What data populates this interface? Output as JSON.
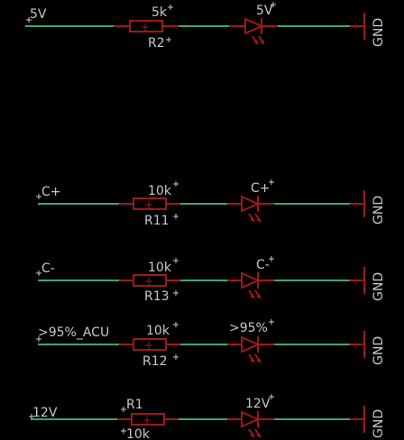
{
  "rows": [
    {
      "net_label": "5V",
      "resistor": {
        "value": "5k",
        "name": "R2"
      },
      "led": {
        "label": "5V"
      },
      "ground": "GND"
    },
    {
      "net_label": "C+",
      "resistor": {
        "value": "10k",
        "name": "R11"
      },
      "led": {
        "label": "C+"
      },
      "ground": "GND"
    },
    {
      "net_label": "C-",
      "resistor": {
        "value": "10k",
        "name": "R13"
      },
      "led": {
        "label": "C-"
      },
      "ground": "GND"
    },
    {
      "net_label": ">95%_ACU",
      "resistor": {
        "value": "10k",
        "name": "R12"
      },
      "led": {
        "label": ">95%"
      },
      "ground": "GND"
    },
    {
      "net_label": "12V",
      "resistor": {
        "value": "10k",
        "name": "R1"
      },
      "led": {
        "label": "12V"
      },
      "ground": "GND"
    }
  ],
  "colors": {
    "background": "#000000",
    "wire": "#3aa678",
    "component": "#a01818",
    "text": "#c8c8c8"
  }
}
